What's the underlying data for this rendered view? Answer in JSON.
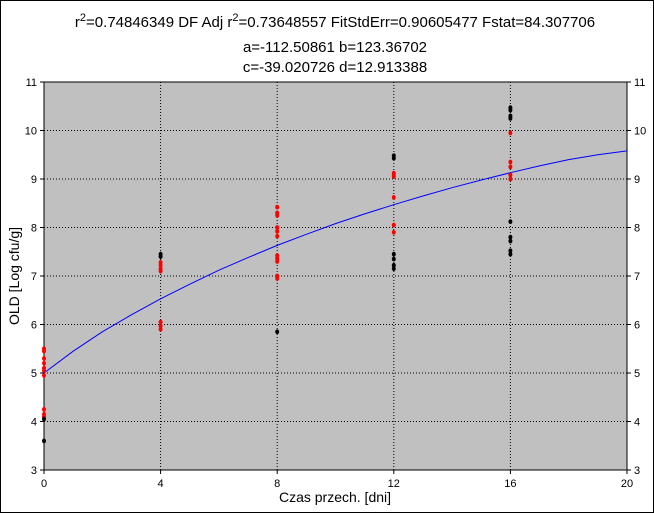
{
  "chart_data": {
    "type": "scatter",
    "title_lines": [
      {
        "id": "line1",
        "parts": [
          "r",
          "2",
          "=0.74846349  DF Adj r",
          "2",
          "=0.73648557  FitStdErr=0.90605477  Fstat=84.307706"
        ]
      },
      {
        "id": "line2",
        "parts": [
          "a=-112.50861 b=123.36702"
        ]
      },
      {
        "id": "line3",
        "parts": [
          "c=-39.020726 d=12.913388"
        ]
      }
    ],
    "xlabel": "Czas przech. [dni]",
    "ylabel": "OLD [Log cfu/g]",
    "xlim": [
      0,
      20
    ],
    "ylim": [
      3,
      11
    ],
    "x_ticks": [
      "0",
      "4",
      "8",
      "12",
      "16",
      "20"
    ],
    "y_ticks": [
      "3",
      "4",
      "5",
      "6",
      "7",
      "8",
      "9",
      "10",
      "11"
    ],
    "grid": true,
    "colors": {
      "plot_bg": "#c0c0c0",
      "fit": "#0000ff",
      "red_series": "#ff0000",
      "black_series": "#000000",
      "grid": "#000000"
    },
    "series": [
      {
        "color": "red",
        "points": [
          [
            0,
            5.5
          ],
          [
            0,
            5.45
          ],
          [
            0,
            5.3
          ],
          [
            0,
            5.2
          ],
          [
            0,
            5.1
          ],
          [
            0,
            5.05
          ],
          [
            0,
            4.95
          ],
          [
            0,
            4.25
          ],
          [
            0,
            4.15
          ],
          [
            0,
            4.1
          ],
          [
            4,
            7.28
          ],
          [
            4,
            7.22
          ],
          [
            4,
            7.15
          ],
          [
            4,
            7.1
          ],
          [
            4,
            6.05
          ],
          [
            4,
            5.97
          ],
          [
            4,
            5.9
          ],
          [
            8,
            8.42
          ],
          [
            8,
            8.3
          ],
          [
            8,
            8.25
          ],
          [
            8,
            8.0
          ],
          [
            8,
            7.92
          ],
          [
            8,
            7.82
          ],
          [
            8,
            7.42
          ],
          [
            8,
            7.36
          ],
          [
            8,
            7.3
          ],
          [
            8,
            7.0
          ],
          [
            8,
            6.95
          ],
          [
            12,
            9.12
          ],
          [
            12,
            9.07
          ],
          [
            12,
            9.05
          ],
          [
            12,
            8.62
          ],
          [
            12,
            8.05
          ],
          [
            12,
            7.9
          ],
          [
            16,
            9.95
          ],
          [
            16,
            9.35
          ],
          [
            16,
            9.25
          ],
          [
            16,
            9.08
          ],
          [
            16,
            9.0
          ]
        ]
      },
      {
        "color": "black",
        "points": [
          [
            0,
            4.05
          ],
          [
            0,
            3.6
          ],
          [
            4,
            7.45
          ],
          [
            4,
            7.4
          ],
          [
            8,
            5.85
          ],
          [
            12,
            9.48
          ],
          [
            12,
            9.43
          ],
          [
            12,
            7.45
          ],
          [
            12,
            7.35
          ],
          [
            12,
            7.22
          ],
          [
            12,
            7.15
          ],
          [
            16,
            10.47
          ],
          [
            16,
            10.42
          ],
          [
            16,
            10.3
          ],
          [
            16,
            10.25
          ],
          [
            16,
            8.12
          ],
          [
            16,
            7.8
          ],
          [
            16,
            7.72
          ],
          [
            16,
            7.52
          ],
          [
            16,
            7.45
          ]
        ]
      }
    ],
    "fit": {
      "points": [
        [
          0,
          5.0
        ],
        [
          1,
          5.45
        ],
        [
          2,
          5.85
        ],
        [
          3,
          6.2
        ],
        [
          4,
          6.53
        ],
        [
          5,
          6.83
        ],
        [
          6,
          7.12
        ],
        [
          7,
          7.38
        ],
        [
          8,
          7.63
        ],
        [
          9,
          7.86
        ],
        [
          10,
          8.08
        ],
        [
          11,
          8.28
        ],
        [
          12,
          8.47
        ],
        [
          13,
          8.65
        ],
        [
          14,
          8.82
        ],
        [
          15,
          8.98
        ],
        [
          16,
          9.13
        ],
        [
          17,
          9.27
        ],
        [
          18,
          9.4
        ],
        [
          19,
          9.5
        ],
        [
          20,
          9.58
        ]
      ]
    }
  }
}
